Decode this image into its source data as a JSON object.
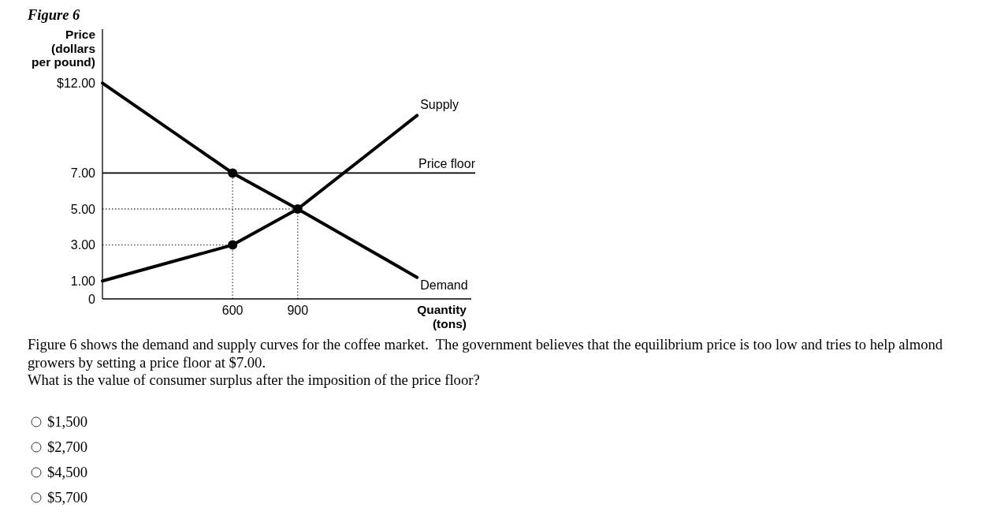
{
  "chart_data": {
    "type": "line",
    "title": "Figure 6",
    "xlabel": "Quantity (tons)",
    "ylabel": "Price (dollars per pound)",
    "xlim": [
      0,
      1700
    ],
    "ylim": [
      0,
      15
    ],
    "xticks": [
      600,
      900
    ],
    "yticks": [
      0,
      {
        "value": 1,
        "label": "1.00"
      },
      {
        "value": 3,
        "label": "3.00"
      },
      {
        "value": 5,
        "label": "5.00"
      },
      {
        "value": 7,
        "label": "7.00"
      },
      {
        "value": 12,
        "label": "$12.00"
      }
    ],
    "series": [
      {
        "name": "Demand",
        "color": "#000000",
        "x": [
          0,
          600,
          900,
          1450
        ],
        "values": [
          12,
          7,
          5,
          1.2
        ]
      },
      {
        "name": "Supply",
        "color": "#000000",
        "x": [
          0,
          600,
          900,
          1450
        ],
        "values": [
          1,
          3,
          5,
          10.2
        ]
      },
      {
        "line_style": "dotted",
        "color": "#444444",
        "x": [
          600,
          600
        ],
        "values": [
          0,
          7
        ]
      },
      {
        "line_style": "dotted",
        "color": "#444444",
        "x": [
          900,
          900
        ],
        "values": [
          0,
          5
        ]
      },
      {
        "line_style": "dotted",
        "color": "#444444",
        "x": [
          0,
          900
        ],
        "values": [
          5,
          5
        ]
      },
      {
        "line_style": "dotted",
        "color": "#444444",
        "x": [
          0,
          600
        ],
        "values": [
          3,
          3
        ]
      },
      {
        "type": "scatter",
        "marker": "circle",
        "color": "#000000",
        "x": [
          600,
          900,
          600
        ],
        "values": [
          7,
          5,
          3
        ]
      }
    ],
    "ref_lines": [
      {
        "axis": "y",
        "value": 7,
        "label": "Price floor",
        "color": "#000000"
      }
    ],
    "annotations": [
      "Figure 6 shows the demand and supply curves for the coffee market.  The government believes that the equilibrium price is too low and tries to help almond growers by setting a price floor at $7.00.",
      "What is the value of consumer surplus after the imposition of the price floor?",
      "$1,500",
      "$2,700",
      "$4,500",
      "$5,700"
    ]
  }
}
